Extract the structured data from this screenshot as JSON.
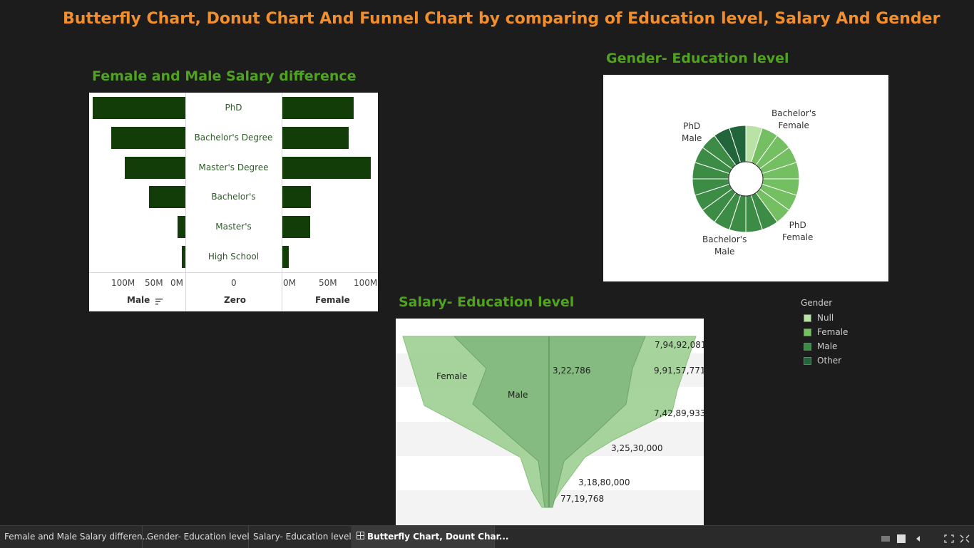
{
  "dashboard_title": "Butterfly Chart, Donut Chart And Funnel Chart by comparing of Education level, Salary And Gender",
  "butterfly": {
    "title": "Female and Male Salary difference",
    "categories": [
      "PhD",
      "Bachelor's Degree",
      "Master's Degree",
      "Bachelor's",
      "Master's",
      "High School"
    ],
    "male_ticks": [
      "100M",
      "50M",
      "0M"
    ],
    "zero_tick": "0",
    "female_ticks": [
      "0M",
      "50M",
      "100M"
    ],
    "male_axis": "Male",
    "zero_axis": "Zero",
    "female_axis": "Female"
  },
  "donut": {
    "title": "Gender- Education level",
    "labels": {
      "bachelors_female": [
        "Bachelor's",
        "Female"
      ],
      "phd_male": [
        "PhD",
        "Male"
      ],
      "phd_female": [
        "PhD",
        "Female"
      ],
      "bachelors_male": [
        "Bachelor's",
        "Male"
      ]
    }
  },
  "funnel": {
    "title": "Salary- Education level",
    "series_labels": {
      "female": "Female",
      "male": "Male"
    },
    "value_labels": [
      "7,94,92,081",
      "3,22,786",
      "9,91,57,771",
      "7,42,89,933",
      "3,25,30,000",
      "3,18,80,000",
      "77,19,768"
    ]
  },
  "legend": {
    "title": "Gender",
    "items": [
      {
        "label": "Null",
        "color": "#b9e2a6"
      },
      {
        "label": "Female",
        "color": "#74bf62"
      },
      {
        "label": "Male",
        "color": "#3d8c45"
      },
      {
        "label": "Other",
        "color": "#23653a"
      }
    ]
  },
  "tabs": [
    {
      "label": "Female and Male Salary differen...",
      "active": false
    },
    {
      "label": "Gender- Education level",
      "active": false
    },
    {
      "label": "Salary- Education level",
      "active": false
    },
    {
      "label": "Butterfly Chart, Dount Char...",
      "active": true
    }
  ],
  "chart_data": [
    {
      "type": "bar",
      "title": "Female and Male Salary difference",
      "categories": [
        "PhD",
        "Bachelor's Degree",
        "Master's Degree",
        "Bachelor's",
        "Master's",
        "High School"
      ],
      "series": [
        {
          "name": "Male",
          "values": [
            120000000,
            96000000,
            78000000,
            47000000,
            10000000,
            5000000
          ]
        },
        {
          "name": "Female",
          "values": [
            90000000,
            84000000,
            112000000,
            36000000,
            35000000,
            8000000
          ]
        }
      ],
      "xlim_male": [
        0,
        120000000
      ],
      "xlim_female": [
        0,
        120000000
      ]
    },
    {
      "type": "pie",
      "title": "Gender- Education level",
      "slice_count": 20,
      "colors": [
        "#b9e2a6",
        "#74bf62",
        "#3d8c45",
        "#23653a"
      ]
    },
    {
      "type": "area",
      "title": "Salary- Education level",
      "series": [
        {
          "name": "Female",
          "values": [
            "7,94,92,081",
            "9,91,57,771",
            "7,42,89,933",
            "3,25,30,000",
            "3,18,80,000",
            "77,19,768"
          ]
        },
        {
          "name": "Male",
          "values": [
            "3,22,786"
          ]
        }
      ]
    }
  ]
}
